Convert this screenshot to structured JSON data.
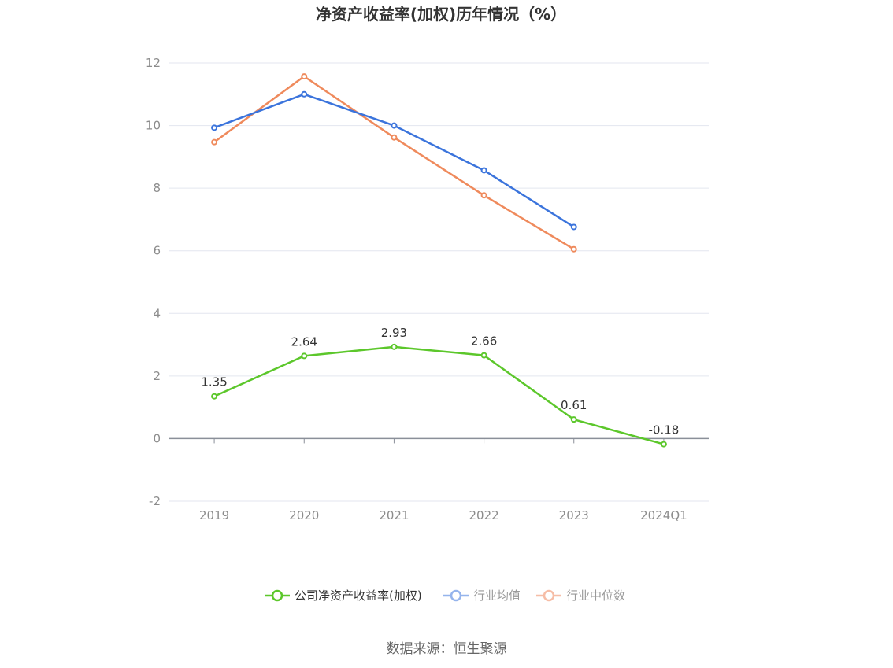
{
  "chart_data": {
    "type": "line",
    "title": "净资产收益率(加权)历年情况（%）",
    "categories": [
      "2019",
      "2020",
      "2021",
      "2022",
      "2023",
      "2024Q1"
    ],
    "ylim": [
      -2,
      12
    ],
    "yticks": [
      -2,
      0,
      2,
      4,
      6,
      8,
      10,
      12
    ],
    "grid": true,
    "legend_position": "bottom",
    "series": [
      {
        "name": "公司净资产收益率(加权)",
        "color": "#5cc72b",
        "values": [
          1.35,
          2.64,
          2.93,
          2.66,
          0.61,
          -0.18
        ],
        "labels": [
          "1.35",
          "2.64",
          "2.93",
          "2.66",
          "0.61",
          "-0.18"
        ],
        "legend_text_color": "#333333"
      },
      {
        "name": "行业均值",
        "color": "#3b74dc",
        "legend_color": "#95b4ec",
        "values": [
          9.93,
          11.0,
          10.0,
          8.57,
          6.76,
          null
        ],
        "legend_text_color": "#999999"
      },
      {
        "name": "行业中位数",
        "color": "#ef8a5c",
        "legend_color": "#f6bda6",
        "values": [
          9.47,
          11.57,
          9.62,
          7.77,
          6.05,
          null
        ],
        "legend_text_color": "#999999"
      }
    ],
    "source": "数据来源：恒生聚源"
  }
}
